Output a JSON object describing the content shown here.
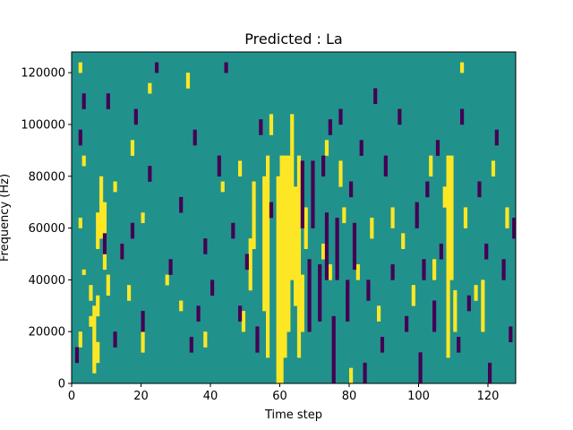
{
  "chart_data": {
    "type": "heatmap",
    "title": "Predicted : La",
    "xlabel": "Time step",
    "ylabel": "Frequency (Hz)",
    "xlim": [
      0,
      128
    ],
    "ylim": [
      0,
      128000
    ],
    "xticks": [
      "0",
      "20",
      "40",
      "60",
      "80",
      "100",
      "120"
    ],
    "xtick_values": [
      0,
      20,
      40,
      60,
      80,
      100,
      120
    ],
    "yticks": [
      "0",
      "20000",
      "40000",
      "60000",
      "80000",
      "100000",
      "120000"
    ],
    "ytick_values": [
      0,
      20000,
      40000,
      60000,
      80000,
      100000,
      120000
    ],
    "colors": {
      "background": "#21918c",
      "high": "#fde725",
      "low": "#440154"
    },
    "n_bins": 64,
    "bin_hz": 2000,
    "high_cells": [
      [
        2,
        7,
        8,
        9
      ],
      [
        2,
        30,
        31,
        60,
        61
      ],
      [
        3,
        42,
        43
      ],
      [
        3,
        21
      ],
      [
        5,
        11,
        12,
        16,
        17,
        18
      ],
      [
        6,
        2,
        3,
        4,
        5,
        6,
        7,
        8,
        9,
        10,
        11,
        12,
        13,
        14
      ],
      [
        7,
        4,
        5,
        6,
        7,
        13,
        14,
        15,
        16,
        26,
        27,
        28,
        29,
        30,
        31,
        32
      ],
      [
        8,
        28,
        29,
        30,
        31,
        32,
        33,
        34,
        35,
        36,
        37,
        38,
        39
      ],
      [
        9,
        22,
        23,
        24,
        25,
        26,
        27,
        28,
        29,
        30,
        31,
        32,
        33,
        34
      ],
      [
        10,
        17,
        18,
        19,
        20
      ],
      [
        12,
        37,
        38
      ],
      [
        14,
        24,
        25,
        26
      ],
      [
        16,
        16,
        17,
        18
      ],
      [
        17,
        44,
        45,
        46
      ],
      [
        20,
        6,
        7,
        8,
        9
      ],
      [
        20,
        31,
        32
      ],
      [
        22,
        56,
        57
      ],
      [
        27,
        19,
        20
      ],
      [
        31,
        14,
        15
      ],
      [
        33,
        57,
        58,
        59
      ],
      [
        38,
        7,
        8,
        9
      ],
      [
        43,
        37,
        38
      ],
      [
        48,
        40,
        41,
        42
      ],
      [
        49,
        10,
        11,
        12,
        13
      ],
      [
        51,
        18,
        19,
        20,
        21,
        22,
        23,
        24,
        25,
        26,
        27
      ],
      [
        52,
        26,
        27,
        28,
        29,
        30,
        31,
        32,
        33,
        34,
        35,
        36,
        37,
        38
      ],
      [
        55,
        14,
        15,
        16,
        17,
        18,
        19,
        20,
        21,
        22,
        23,
        24,
        25,
        26,
        27,
        28,
        29,
        30,
        31,
        32,
        33,
        34,
        35,
        36,
        37,
        38,
        39
      ],
      [
        56,
        5,
        6,
        7,
        8,
        9,
        10,
        11,
        12,
        13,
        14,
        15,
        16,
        17,
        18,
        19,
        20,
        21,
        22,
        23,
        24,
        25,
        26,
        27,
        28,
        29,
        30,
        31,
        32,
        33,
        34,
        35,
        36,
        37,
        38,
        39,
        40,
        41,
        42,
        43
      ],
      [
        57,
        48,
        49,
        50,
        51
      ],
      [
        59,
        0,
        1,
        2,
        3,
        4,
        5,
        6,
        7,
        8,
        9,
        10,
        11,
        12,
        13,
        14,
        15,
        16,
        17,
        18,
        19,
        20,
        21,
        22,
        23,
        24,
        25,
        26,
        27,
        28,
        29,
        30,
        31,
        32,
        33,
        34,
        35,
        36,
        37,
        38,
        39
      ],
      [
        60,
        0,
        1,
        2,
        3,
        4,
        5,
        6,
        7,
        8,
        9,
        10,
        11,
        12,
        13,
        14,
        15,
        16,
        17,
        18,
        19,
        20,
        21,
        22,
        23,
        24,
        25,
        26,
        27,
        28,
        29,
        30,
        31,
        32,
        33,
        34,
        35,
        36,
        37,
        38,
        39,
        40,
        41,
        42,
        43
      ],
      [
        61,
        5,
        6,
        7,
        8,
        9,
        10,
        11,
        12,
        13,
        14,
        15,
        16,
        17,
        18,
        19,
        20,
        21,
        22,
        23,
        24,
        25,
        26,
        27,
        28,
        29,
        30,
        31,
        32,
        33,
        34,
        35,
        36,
        37,
        38,
        39,
        40,
        41,
        42,
        43
      ],
      [
        62,
        10,
        11,
        12,
        13,
        14,
        15,
        16,
        17,
        18,
        19,
        20,
        21,
        22,
        23,
        24,
        25,
        26,
        27,
        28,
        29,
        30,
        31,
        32,
        33,
        34,
        35,
        36,
        37,
        38,
        39,
        40,
        41,
        42,
        43
      ],
      [
        63,
        20,
        21,
        22,
        23,
        24,
        25,
        26,
        27,
        28,
        29,
        30,
        31,
        32,
        33,
        34,
        35,
        36,
        37,
        38,
        39,
        40,
        41,
        42,
        43,
        44,
        45,
        46,
        47,
        48,
        49,
        50,
        51
      ],
      [
        64,
        15,
        16,
        17,
        18,
        19,
        20,
        21,
        22,
        23,
        24,
        25,
        26,
        27,
        28,
        29,
        30,
        31,
        32,
        33,
        34,
        35,
        36,
        37
      ],
      [
        65,
        5,
        6,
        7,
        8,
        9,
        10,
        11,
        12,
        13,
        14,
        15,
        16,
        17,
        18,
        19,
        20,
        21,
        22,
        23,
        24,
        25,
        26,
        27,
        28,
        29,
        30,
        31,
        32,
        33,
        34,
        35,
        36,
        37,
        38,
        39,
        40,
        41,
        42,
        43
      ],
      [
        66,
        10,
        11,
        12,
        13,
        14,
        15,
        16,
        17,
        18,
        19,
        20
      ],
      [
        67,
        26,
        27,
        28,
        29,
        30,
        31,
        32,
        33
      ],
      [
        72,
        24,
        25,
        26
      ],
      [
        73,
        44,
        45,
        46
      ],
      [
        74,
        20,
        21,
        22
      ],
      [
        77,
        38,
        39,
        40,
        41,
        42
      ],
      [
        78,
        31,
        32,
        33
      ],
      [
        80,
        0,
        1,
        2
      ],
      [
        82,
        20,
        21,
        22
      ],
      [
        86,
        28,
        29,
        30,
        31
      ],
      [
        88,
        12,
        13,
        14
      ],
      [
        92,
        30,
        31,
        32,
        33
      ],
      [
        95,
        26,
        27,
        28
      ],
      [
        98,
        15,
        16,
        17,
        18
      ],
      [
        103,
        40,
        41,
        42,
        43
      ],
      [
        104,
        20,
        21,
        22,
        23
      ],
      [
        107,
        34,
        35,
        36,
        37
      ],
      [
        108,
        5,
        6,
        7,
        8,
        9,
        10,
        11,
        12,
        13,
        14,
        15,
        16,
        17,
        18,
        19,
        20,
        21,
        22,
        23,
        24,
        25,
        26,
        27,
        28,
        29,
        30,
        31,
        32,
        33,
        34,
        35,
        36,
        37,
        38,
        39,
        40,
        41,
        42,
        43
      ],
      [
        109,
        20,
        21,
        22,
        23,
        24,
        25,
        26,
        27,
        28,
        29,
        30,
        31,
        32,
        33,
        34,
        35,
        36,
        37,
        38,
        39,
        40,
        41,
        42,
        43
      ],
      [
        110,
        10,
        11,
        12,
        13,
        14,
        15,
        16,
        17
      ],
      [
        112,
        60,
        61
      ],
      [
        113,
        30,
        31,
        32,
        33
      ],
      [
        116,
        16,
        17,
        18
      ],
      [
        118,
        10,
        11,
        12,
        13,
        14,
        15,
        16,
        17,
        18,
        19
      ],
      [
        121,
        40,
        41,
        42
      ],
      [
        125,
        30,
        31,
        32,
        33
      ]
    ],
    "low_cells": [
      [
        1,
        4,
        5,
        6
      ],
      [
        2,
        46,
        47,
        48
      ],
      [
        3,
        53,
        54,
        55
      ],
      [
        9,
        25,
        26,
        27,
        28
      ],
      [
        10,
        53,
        54,
        55
      ],
      [
        12,
        7,
        8,
        9
      ],
      [
        14,
        24,
        25,
        26
      ],
      [
        17,
        28,
        29,
        30
      ],
      [
        18,
        50,
        51,
        52
      ],
      [
        20,
        10,
        11,
        12,
        13
      ],
      [
        22,
        39,
        40,
        41
      ],
      [
        24,
        60,
        61
      ],
      [
        28,
        21,
        22,
        23
      ],
      [
        31,
        33,
        34,
        35
      ],
      [
        34,
        6,
        7,
        8
      ],
      [
        35,
        46,
        47,
        48
      ],
      [
        36,
        12,
        13,
        14
      ],
      [
        38,
        25,
        26,
        27
      ],
      [
        40,
        17,
        18,
        19
      ],
      [
        42,
        40,
        41,
        42,
        43
      ],
      [
        44,
        60,
        61
      ],
      [
        46,
        28,
        29,
        30
      ],
      [
        48,
        12,
        13,
        14
      ],
      [
        50,
        22,
        23,
        24
      ],
      [
        53,
        6,
        7,
        8,
        9,
        10
      ],
      [
        54,
        48,
        49,
        50
      ],
      [
        57,
        32,
        33,
        34
      ],
      [
        66,
        30,
        31,
        32,
        33,
        34,
        35,
        36,
        37,
        38,
        39,
        40,
        41,
        42
      ],
      [
        68,
        10,
        11,
        12,
        13,
        14,
        15,
        16,
        17,
        18,
        19,
        20,
        21,
        22,
        23
      ],
      [
        69,
        30,
        31,
        32,
        33,
        34,
        35,
        36,
        37,
        38,
        39,
        40,
        41,
        42
      ],
      [
        71,
        12,
        13,
        14,
        15,
        16,
        17,
        18,
        19,
        20,
        21,
        22
      ],
      [
        72,
        40,
        41,
        42,
        43
      ],
      [
        73,
        20,
        21,
        22,
        23,
        24,
        25,
        26,
        27,
        28,
        29,
        30,
        31,
        32
      ],
      [
        74,
        48,
        49,
        50
      ],
      [
        75,
        0,
        1,
        2,
        3,
        4,
        5,
        6,
        7,
        8,
        9,
        10,
        11,
        12
      ],
      [
        76,
        20,
        21,
        22,
        23,
        24,
        25,
        26,
        27,
        28,
        29,
        30,
        31
      ],
      [
        77,
        50,
        51,
        52
      ],
      [
        79,
        12,
        13,
        14,
        15,
        16,
        17,
        18,
        19
      ],
      [
        80,
        36,
        37,
        38
      ],
      [
        81,
        22,
        23,
        24,
        25,
        26,
        27,
        28,
        29,
        30
      ],
      [
        83,
        44,
        45,
        46
      ],
      [
        84,
        0,
        1,
        2,
        3
      ],
      [
        85,
        16,
        17,
        18,
        19
      ],
      [
        87,
        54,
        55,
        56
      ],
      [
        89,
        6,
        7,
        8
      ],
      [
        90,
        40,
        41,
        42,
        43
      ],
      [
        92,
        20,
        21,
        22
      ],
      [
        94,
        50,
        51,
        52
      ],
      [
        96,
        10,
        11,
        12
      ],
      [
        99,
        30,
        31,
        32,
        33,
        34
      ],
      [
        100,
        0,
        1,
        2,
        3,
        4,
        5
      ],
      [
        101,
        20,
        21,
        22,
        23
      ],
      [
        102,
        36,
        37,
        38
      ],
      [
        104,
        10,
        11,
        12,
        13,
        14,
        15
      ],
      [
        105,
        44,
        45,
        46
      ],
      [
        106,
        24,
        25,
        26
      ],
      [
        111,
        6,
        7,
        8
      ],
      [
        112,
        50,
        51,
        52
      ],
      [
        114,
        14,
        15,
        16
      ],
      [
        117,
        36,
        37,
        38
      ],
      [
        119,
        24,
        25,
        26
      ],
      [
        120,
        0,
        1,
        2,
        3
      ],
      [
        122,
        46,
        47,
        48
      ],
      [
        124,
        20,
        21,
        22,
        23
      ],
      [
        126,
        8,
        9,
        10
      ],
      [
        127,
        28,
        29,
        30,
        31
      ]
    ]
  }
}
